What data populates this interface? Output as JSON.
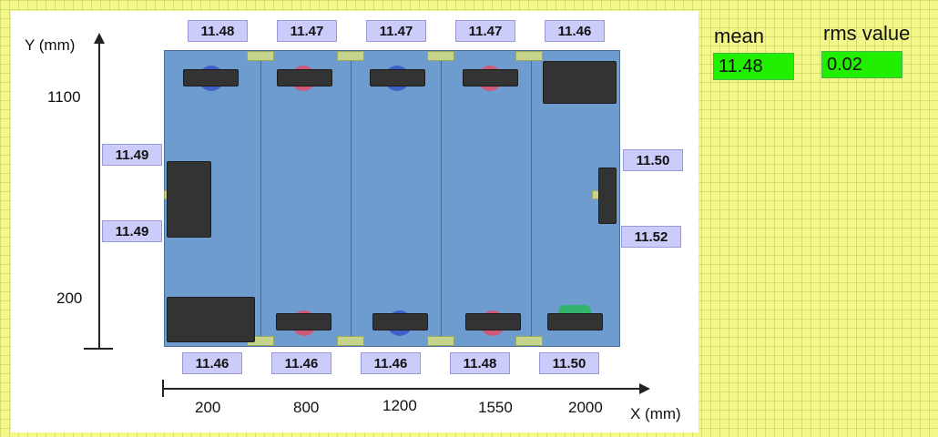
{
  "axes": {
    "y_label": "Y (mm)",
    "x_label": "X (mm)",
    "y_ticks": [
      "1100",
      "200"
    ],
    "x_ticks": [
      "200",
      "800",
      "1200",
      "1550",
      "2000"
    ]
  },
  "readings": {
    "top": [
      "11.48",
      "11.47",
      "11.47",
      "11.47",
      "11.46"
    ],
    "bottom": [
      "11.46",
      "11.46",
      "11.46",
      "11.48",
      "11.50"
    ],
    "left": [
      "11.49",
      "11.49"
    ],
    "right": [
      "11.50",
      "11.52"
    ]
  },
  "stats": {
    "mean_label": "mean",
    "mean_value": "11.48",
    "rms_label": "rms value",
    "rms_value": "0.02"
  },
  "colors": {
    "board": "#6e9ccf",
    "value_box": "#ccccfa",
    "stat_box": "#22ee00",
    "background": "#f4f88a"
  }
}
